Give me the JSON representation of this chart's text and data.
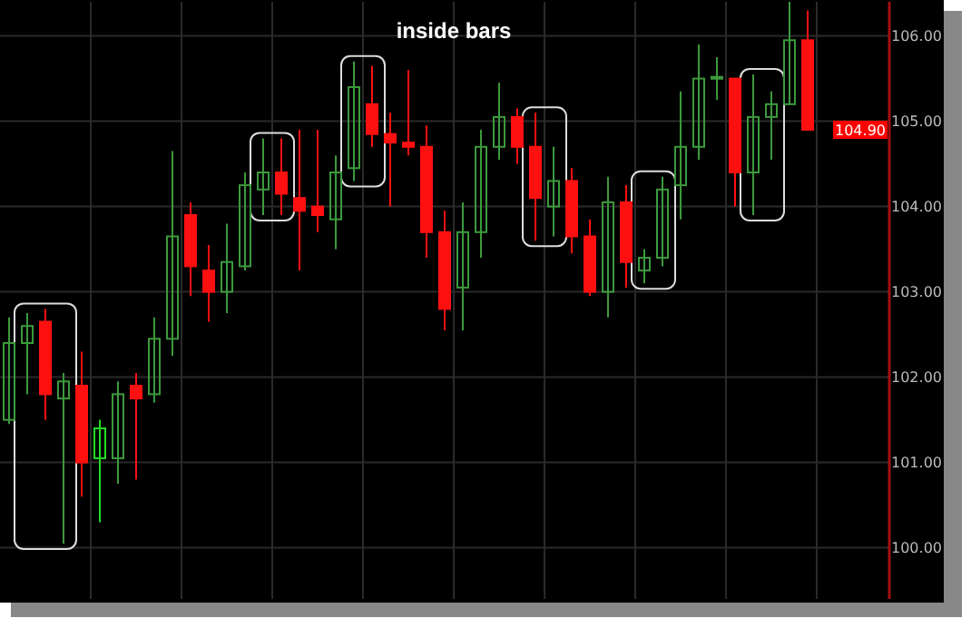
{
  "chart_data": {
    "type": "candlestick",
    "title": "inside bars",
    "categories": [
      null,
      null,
      null,
      null,
      null,
      null,
      null,
      null,
      null,
      null,
      null,
      null,
      null,
      null,
      null,
      null,
      null,
      null,
      null,
      null,
      null,
      null,
      null,
      null,
      null,
      null,
      null,
      null,
      null,
      null,
      null,
      null,
      null,
      null,
      null,
      null,
      null,
      null,
      null,
      null,
      null,
      null,
      null,
      null,
      null,
      null,
      null,
      null,
      null
    ],
    "ohlc": [
      [
        101.5,
        102.7,
        101.45,
        102.4
      ],
      [
        102.4,
        102.75,
        101.8,
        102.6
      ],
      [
        102.65,
        102.8,
        101.5,
        101.8
      ],
      [
        101.75,
        102.05,
        100.05,
        101.95
      ],
      [
        101.9,
        102.3,
        100.6,
        101.0
      ],
      [
        101.05,
        101.5,
        100.3,
        101.4
      ],
      [
        101.05,
        101.95,
        100.75,
        101.8
      ],
      [
        101.9,
        102.05,
        100.8,
        101.75
      ],
      [
        101.8,
        102.7,
        101.7,
        102.45
      ],
      [
        102.45,
        104.65,
        102.25,
        103.65
      ],
      [
        103.9,
        104.05,
        102.95,
        103.3
      ],
      [
        103.25,
        103.55,
        102.65,
        103.0
      ],
      [
        103.0,
        103.8,
        102.75,
        103.35
      ],
      [
        103.3,
        104.4,
        103.25,
        104.25
      ],
      [
        104.2,
        104.8,
        103.9,
        104.4
      ],
      [
        104.4,
        104.8,
        103.9,
        104.15
      ],
      [
        104.1,
        104.9,
        103.25,
        103.95
      ],
      [
        104.0,
        104.9,
        103.7,
        103.9
      ],
      [
        103.85,
        104.6,
        103.5,
        104.4
      ],
      [
        104.45,
        105.7,
        104.3,
        105.4
      ],
      [
        105.2,
        105.65,
        104.7,
        104.85
      ],
      [
        104.85,
        105.1,
        104.0,
        104.75
      ],
      [
        104.75,
        105.6,
        104.6,
        104.7
      ],
      [
        104.7,
        104.95,
        103.4,
        103.7
      ],
      [
        103.7,
        103.95,
        102.55,
        102.8
      ],
      [
        103.05,
        104.05,
        102.55,
        103.7
      ],
      [
        103.7,
        104.9,
        103.4,
        104.7
      ],
      [
        104.7,
        105.45,
        104.55,
        105.05
      ],
      [
        105.05,
        105.15,
        104.5,
        104.7
      ],
      [
        104.7,
        105.1,
        103.6,
        104.1
      ],
      [
        104.0,
        104.7,
        103.65,
        104.3
      ],
      [
        104.3,
        104.45,
        103.45,
        103.65
      ],
      [
        103.65,
        103.85,
        102.95,
        103.0
      ],
      [
        103.0,
        104.35,
        102.7,
        104.05
      ],
      [
        104.05,
        104.25,
        103.05,
        103.35
      ],
      [
        103.25,
        103.5,
        103.1,
        103.4
      ],
      [
        103.4,
        104.35,
        103.3,
        104.2
      ],
      [
        104.25,
        105.35,
        103.85,
        104.7
      ],
      [
        104.7,
        105.9,
        104.55,
        105.5
      ],
      [
        105.5,
        105.75,
        105.25,
        105.52
      ],
      [
        105.5,
        105.5,
        104.0,
        104.4
      ],
      [
        104.4,
        105.55,
        103.9,
        105.05
      ],
      [
        105.05,
        105.35,
        104.55,
        105.2
      ],
      [
        105.2,
        106.4,
        105.2,
        105.95
      ],
      [
        105.95,
        106.3,
        104.9,
        104.9
      ],
      null,
      null,
      null,
      null
    ],
    "colors": [
      "#3c9a3c",
      "#3c9a3c",
      "#ff1010",
      "#3c9a3c",
      "#ff1010",
      "#22dd22",
      "#3c9a3c",
      "#ff1010",
      "#3c9a3c",
      "#3c9a3c",
      "#ff1010",
      "#ff1010",
      "#3c9a3c",
      "#3c9a3c",
      "#3c9a3c",
      "#ff1010",
      "#ff1010",
      "#ff1010",
      "#3c9a3c",
      "#3c9a3c",
      "#ff1010",
      "#ff1010",
      "#ff1010",
      "#ff1010",
      "#ff1010",
      "#3c9a3c",
      "#3c9a3c",
      "#3c9a3c",
      "#ff1010",
      "#ff1010",
      "#3c9a3c",
      "#ff1010",
      "#ff1010",
      "#3c9a3c",
      "#ff1010",
      "#3c9a3c",
      "#3c9a3c",
      "#3c9a3c",
      "#3c9a3c",
      "#3c9a3c",
      "#ff1010",
      "#3c9a3c",
      "#3c9a3c",
      "#3c9a3c",
      "#ff1010",
      null,
      null,
      null,
      null
    ],
    "ylim": [
      99.4,
      106.4
    ],
    "yticks": [
      {
        "value": 100,
        "label": "100.00"
      },
      {
        "value": 101,
        "label": "101.00"
      },
      {
        "value": 102,
        "label": "102.00"
      },
      {
        "value": 103,
        "label": "103.00"
      },
      {
        "value": 104,
        "label": "104.00"
      },
      {
        "value": 105,
        "label": "105.00"
      },
      {
        "value": 106,
        "label": "106.00"
      }
    ],
    "annotations": [
      {
        "text": "104.90",
        "y": 104.9
      }
    ],
    "grid": true
  }
}
